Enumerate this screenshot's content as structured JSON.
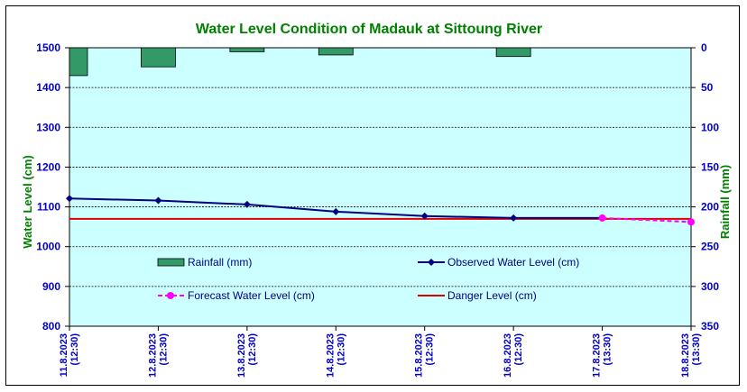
{
  "chart_data": {
    "type": "line",
    "title": "Water Level Condition of Madauk at Sittoung River",
    "ylabel": "Water Level (cm)",
    "y2label": "Rainfall (mm)",
    "ylim": [
      800,
      1500
    ],
    "y_ticks": [
      800,
      900,
      1000,
      1100,
      1200,
      1300,
      1400,
      1500
    ],
    "y2lim": [
      0,
      350
    ],
    "y2_ticks": [
      0,
      50,
      100,
      150,
      200,
      250,
      300,
      350
    ],
    "y2_inverted": true,
    "grid": true,
    "categories": [
      [
        "11.8.2023",
        "(12:30)"
      ],
      [
        "12.8.2023",
        "(12:30)"
      ],
      [
        "13.8.2023",
        "(12:30)"
      ],
      [
        "14.8.2023",
        "(12:30)"
      ],
      [
        "15.8.2023",
        "(12:30)"
      ],
      [
        "16.8.2023",
        "(12:30)"
      ],
      [
        "17.8.2023",
        "(13:30)"
      ],
      [
        "18.8.2023",
        "(13:30)"
      ]
    ],
    "series": [
      {
        "name": "Rainfall (mm)",
        "type": "bar",
        "axis": "right",
        "color": "#339966",
        "values": [
          35,
          24,
          5,
          9,
          null,
          11,
          null,
          null
        ]
      },
      {
        "name": "Observed Water Level (cm)",
        "type": "line",
        "axis": "left",
        "color": "#000080",
        "marker": "diamond",
        "values": [
          1121,
          1116,
          1106,
          1088,
          1077,
          1072,
          1072,
          null
        ]
      },
      {
        "name": "Forecast Water Level (cm)",
        "type": "line",
        "axis": "left",
        "color": "#ff00ff",
        "marker": "circle",
        "dashed": true,
        "values": [
          null,
          null,
          null,
          null,
          null,
          null,
          1072,
          1062
        ]
      },
      {
        "name": "Danger Level (cm)",
        "type": "line",
        "axis": "left",
        "color": "#e00000",
        "constant": true,
        "values": [
          1070,
          1070,
          1070,
          1070,
          1070,
          1070,
          1070,
          1070
        ]
      }
    ],
    "colors": {
      "plot_bg": "#ccffff",
      "title": "#008000",
      "axis_title": "#008000",
      "tick": "#0000cc",
      "legend_text": "#000080"
    }
  }
}
